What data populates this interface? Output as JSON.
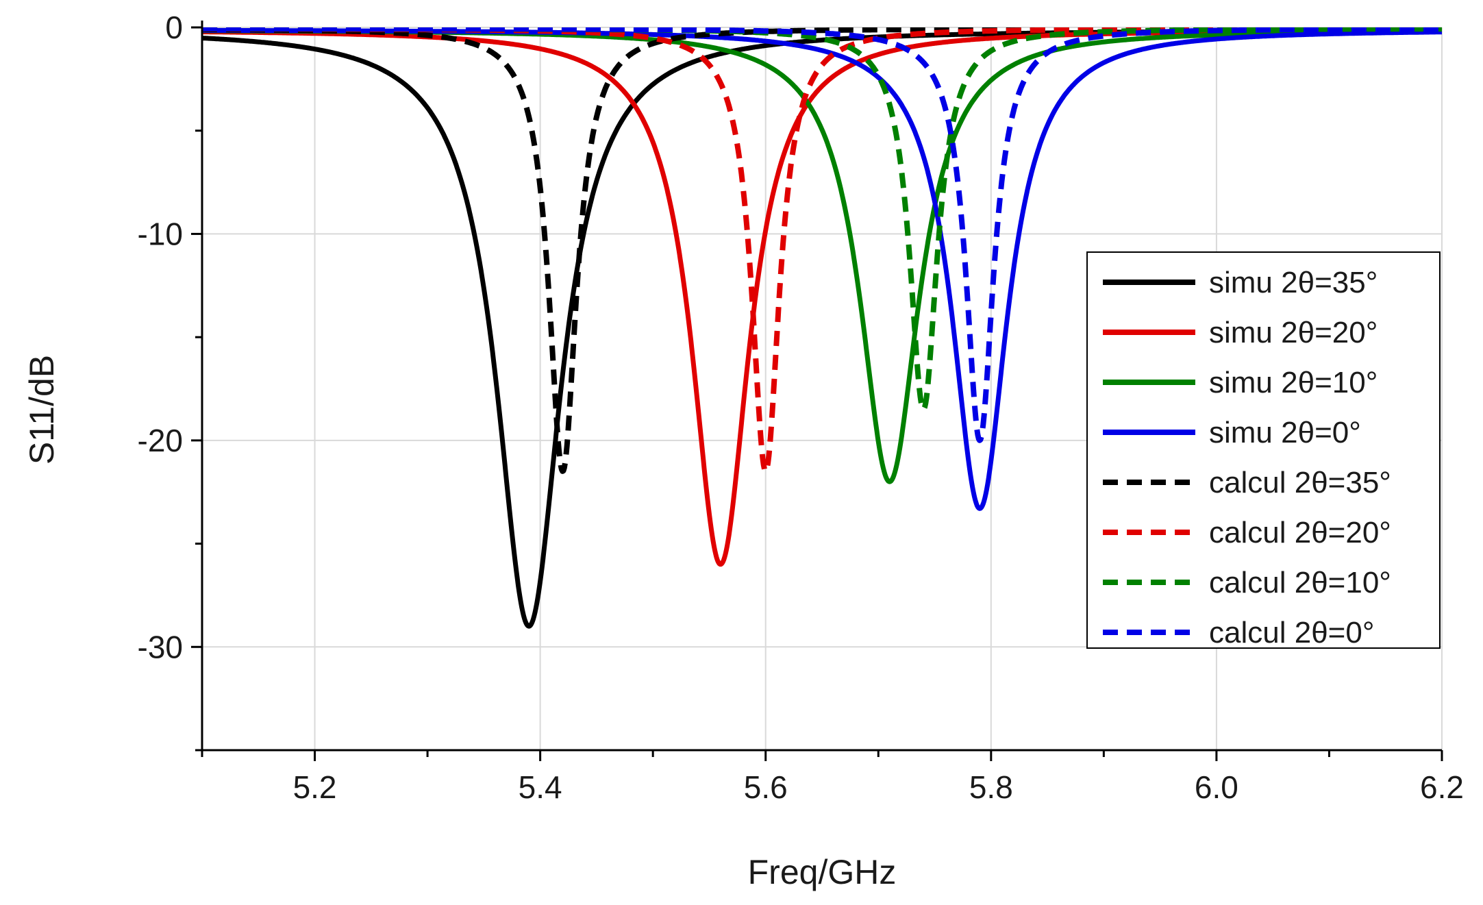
{
  "chart_data": {
    "type": "line",
    "title": "",
    "xlabel": "Freq/GHz",
    "ylabel": "S11/dB",
    "xlim": [
      5.1,
      6.2
    ],
    "ylim": [
      -35,
      0
    ],
    "xticks": [
      5.2,
      5.4,
      5.6,
      5.8,
      6.0,
      6.2
    ],
    "xtick_labels": [
      "5.2",
      "5.4",
      "5.6",
      "5.8",
      "6.0",
      "6.2"
    ],
    "yticks": [
      0,
      -10,
      -20,
      -30
    ],
    "ytick_labels": [
      "0",
      "-10",
      "-20",
      "-30"
    ],
    "grid": true,
    "legend_position": "right",
    "series": [
      {
        "name": "simu 2θ=35°",
        "color": "#000000",
        "style": "solid",
        "center": 5.39,
        "min": -29.0,
        "halfwidth": 0.035,
        "baseline": -0.1
      },
      {
        "name": "simu 2θ=20°",
        "color": "#e00000",
        "style": "solid",
        "center": 5.56,
        "min": -26.0,
        "halfwidth": 0.031,
        "baseline": -0.1
      },
      {
        "name": "simu 2θ=10°",
        "color": "#008000",
        "style": "solid",
        "center": 5.71,
        "min": -22.0,
        "halfwidth": 0.032,
        "baseline": -0.1
      },
      {
        "name": "simu 2θ=0°",
        "color": "#0000e6",
        "style": "solid",
        "center": 5.79,
        "min": -23.3,
        "halfwidth": 0.03,
        "baseline": -0.1
      },
      {
        "name": "calcul 2θ=35°",
        "color": "#000000",
        "style": "dash",
        "center": 5.42,
        "min": -21.5,
        "halfwidth": 0.015,
        "baseline": -0.05
      },
      {
        "name": "calcul 2θ=20°",
        "color": "#e00000",
        "style": "dash",
        "center": 5.6,
        "min": -21.5,
        "halfwidth": 0.015,
        "baseline": -0.05
      },
      {
        "name": "calcul 2θ=10°",
        "color": "#008000",
        "style": "dash",
        "center": 5.74,
        "min": -18.5,
        "halfwidth": 0.015,
        "baseline": -0.05
      },
      {
        "name": "calcul 2θ=0°",
        "color": "#0000e6",
        "style": "dash",
        "center": 5.79,
        "min": -20.0,
        "halfwidth": 0.015,
        "baseline": -0.05
      }
    ]
  }
}
